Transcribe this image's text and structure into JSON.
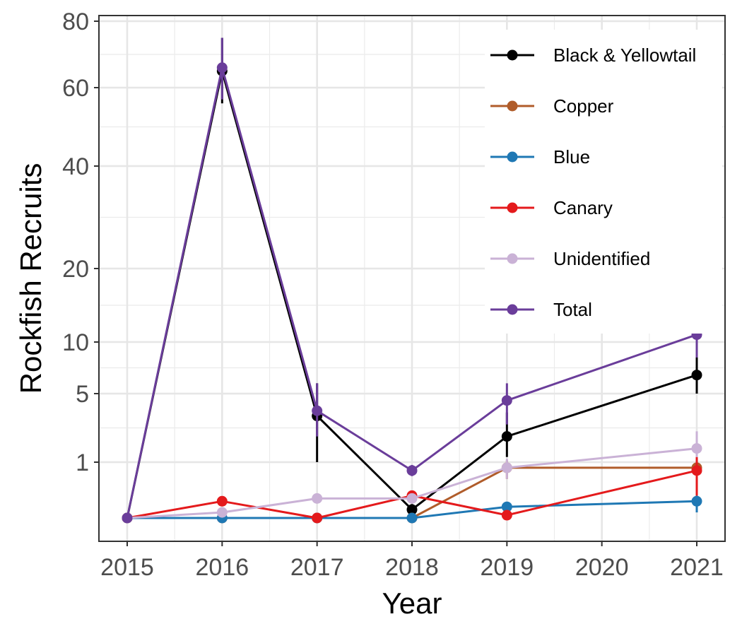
{
  "chart_data": {
    "type": "line",
    "title": "",
    "xlabel": "Year",
    "ylabel": "Rockfish Recruits",
    "x_ticks": [
      "2015",
      "2016",
      "2017",
      "2018",
      "2019",
      "2020",
      "2021"
    ],
    "xlim": [
      2015,
      2021
    ],
    "y_scale": "sqrt-like (transformed)",
    "y_ticks": [
      1,
      5,
      10,
      20,
      40,
      60,
      80
    ],
    "ylim": [
      0,
      80
    ],
    "grid": true,
    "legend_position": "top-right (inside plot)",
    "series": [
      {
        "name": "Black & Yellowtail",
        "color": "#000000",
        "points": [
          {
            "x": 2015,
            "y": 0.0
          },
          {
            "x": 2016,
            "y": 65.0,
            "err_low": 56.0,
            "err_high": 75.0
          },
          {
            "x": 2017,
            "y": 3.7,
            "err_low": 1.0,
            "err_high": 6.0
          },
          {
            "x": 2018,
            "y": 0.15,
            "err_low": 0.05,
            "err_high": 0.25
          },
          {
            "x": 2019,
            "y": 2.5,
            "err_low": 1.3,
            "err_high": 3.9
          },
          {
            "x": 2021,
            "y": 6.8,
            "err_low": 5.0,
            "err_high": 8.6
          }
        ]
      },
      {
        "name": "Copper",
        "color": "#b05c2a",
        "points": [
          {
            "x": 2015,
            "y": 0.0
          },
          {
            "x": 2016,
            "y": 0.0
          },
          {
            "x": 2017,
            "y": 0.0
          },
          {
            "x": 2018,
            "y": 0.0
          },
          {
            "x": 2019,
            "y": 0.9,
            "err_low": 0.7,
            "err_high": 1.1
          },
          {
            "x": 2021,
            "y": 0.9
          }
        ]
      },
      {
        "name": "Blue",
        "color": "#1f78b4",
        "points": [
          {
            "x": 2015,
            "y": 0.0
          },
          {
            "x": 2016,
            "y": 0.0
          },
          {
            "x": 2017,
            "y": 0.0
          },
          {
            "x": 2018,
            "y": 0.0
          },
          {
            "x": 2019,
            "y": 0.2
          },
          {
            "x": 2021,
            "y": 0.3,
            "err_low": 0.1,
            "err_high": 0.5
          }
        ]
      },
      {
        "name": "Canary",
        "color": "#e41a1c",
        "points": [
          {
            "x": 2015,
            "y": 0.0
          },
          {
            "x": 2016,
            "y": 0.3,
            "err_low": 0.25,
            "err_high": 0.35
          },
          {
            "x": 2017,
            "y": 0.0
          },
          {
            "x": 2018,
            "y": 0.4
          },
          {
            "x": 2019,
            "y": 0.05
          },
          {
            "x": 2021,
            "y": 0.85,
            "err_low": 0.4,
            "err_high": 1.3
          }
        ]
      },
      {
        "name": "Unidentified",
        "color": "#cab2d6",
        "points": [
          {
            "x": 2015,
            "y": 0.0
          },
          {
            "x": 2016,
            "y": 0.1
          },
          {
            "x": 2017,
            "y": 0.35
          },
          {
            "x": 2018,
            "y": 0.35
          },
          {
            "x": 2019,
            "y": 0.9,
            "err_low": 0.7,
            "err_high": 1.2
          },
          {
            "x": 2021,
            "y": 1.8,
            "err_low": 1.3,
            "err_high": 2.8
          }
        ]
      },
      {
        "name": "Total",
        "color": "#6a3d9a",
        "points": [
          {
            "x": 2015,
            "y": 0.0
          },
          {
            "x": 2016,
            "y": 66.0,
            "err_low": 57.0,
            "err_high": 75.0
          },
          {
            "x": 2017,
            "y": 4.0,
            "err_low": 2.5,
            "err_high": 6.0
          },
          {
            "x": 2018,
            "y": 0.85,
            "err_low": 0.75,
            "err_high": 0.95
          },
          {
            "x": 2019,
            "y": 4.6,
            "err_low": 3.2,
            "err_high": 6.0
          },
          {
            "x": 2021,
            "y": 11.0,
            "err_low": 8.5,
            "err_high": 13.5
          }
        ]
      }
    ]
  }
}
